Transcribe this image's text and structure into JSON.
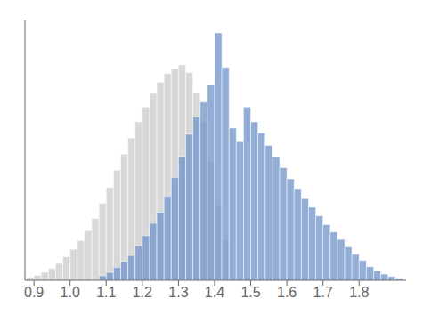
{
  "chart_data": {
    "type": "histogram",
    "xlim": [
      0.875,
      1.93
    ],
    "ylim": [
      0,
      1.05
    ],
    "xticks": [
      0.9,
      {
        "value": 1.0,
        "label": "1.0"
      },
      1.1,
      1.2,
      1.3,
      1.4,
      1.5,
      1.6,
      1.7,
      1.8
    ],
    "tick_labels": "x",
    "series": [
      {
        "color": "#d8d8d8",
        "bins": [
          0.88,
          0.9,
          0.92,
          0.94,
          0.96,
          0.98,
          1.0,
          1.02,
          1.04,
          1.06,
          1.08,
          1.1,
          1.12,
          1.14,
          1.16,
          1.18,
          1.2,
          1.22,
          1.24,
          1.26,
          1.28,
          1.3,
          1.32,
          1.34,
          1.36,
          1.38,
          1.4,
          1.42,
          1.44
        ],
        "values": [
          0.012,
          0.02,
          0.032,
          0.048,
          0.068,
          0.095,
          0.125,
          0.16,
          0.2,
          0.25,
          0.31,
          0.375,
          0.445,
          0.51,
          0.575,
          0.64,
          0.7,
          0.755,
          0.8,
          0.835,
          0.855,
          0.87,
          0.84,
          0.76,
          0.64,
          0.48,
          0.3,
          0.16
        ]
      },
      {
        "color": "#7799cc",
        "bins": [
          1.08,
          1.1,
          1.12,
          1.14,
          1.16,
          1.18,
          1.2,
          1.22,
          1.24,
          1.26,
          1.28,
          1.3,
          1.32,
          1.34,
          1.36,
          1.38,
          1.4,
          1.42,
          1.44,
          1.46,
          1.48,
          1.5,
          1.52,
          1.54,
          1.56,
          1.58,
          1.6,
          1.62,
          1.64,
          1.66,
          1.68,
          1.7,
          1.72,
          1.74,
          1.76,
          1.78,
          1.8,
          1.82,
          1.84,
          1.86,
          1.88,
          1.9,
          1.92
        ],
        "values": [
          0.018,
          0.032,
          0.052,
          0.075,
          0.1,
          0.14,
          0.18,
          0.23,
          0.275,
          0.34,
          0.415,
          0.5,
          0.59,
          0.66,
          0.72,
          0.79,
          1.0,
          0.86,
          0.615,
          0.56,
          0.7,
          0.64,
          0.595,
          0.545,
          0.5,
          0.455,
          0.41,
          0.37,
          0.33,
          0.295,
          0.26,
          0.225,
          0.195,
          0.165,
          0.135,
          0.105,
          0.08,
          0.055,
          0.038,
          0.025,
          0.015,
          0.008
        ]
      }
    ]
  }
}
